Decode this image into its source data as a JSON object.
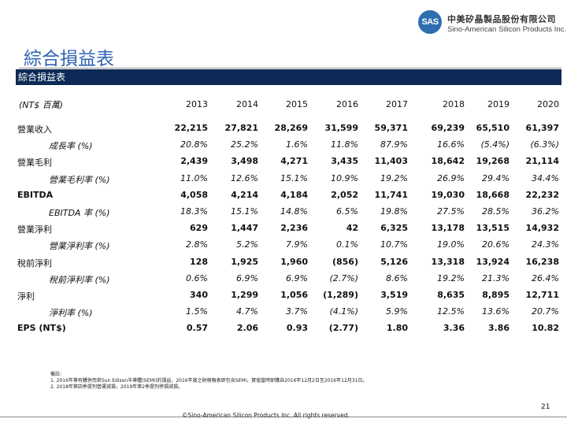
{
  "logo": {
    "mark": "SAS",
    "name_cn": "中美矽晶製品股份有限公司",
    "name_en": "Sino-American Silicon Products Inc."
  },
  "page_title": "綜合損益表",
  "table_header": "綜合損益表",
  "unit_label": "(NT$ 百萬)",
  "years": [
    "2013",
    "2014",
    "2015",
    "2016",
    "2017",
    "2018",
    "2019",
    "2020"
  ],
  "rows": [
    {
      "label": "營業收入",
      "type": "main",
      "values": [
        "22,215",
        "27,821",
        "28,269",
        "31,599",
        "59,371",
        "69,239",
        "65,510",
        "61,397"
      ]
    },
    {
      "label": "成長率 (%)",
      "type": "sub",
      "values": [
        "20.8%",
        "25.2%",
        "1.6%",
        "11.8%",
        "87.9%",
        "16.6%",
        "(5.4%)",
        "(6.3%)"
      ]
    },
    {
      "label": "營業毛利",
      "type": "main",
      "values": [
        "2,439",
        "3,498",
        "4,271",
        "3,435",
        "11,403",
        "18,642",
        "19,268",
        "21,114"
      ]
    },
    {
      "label": "營業毛利率 (%)",
      "type": "sub",
      "values": [
        "11.0%",
        "12.6%",
        "15.1%",
        "10.9%",
        "19.2%",
        "26.9%",
        "29.4%",
        "34.4%"
      ]
    },
    {
      "label": "EBITDA",
      "type": "main",
      "values": [
        "4,058",
        "4,214",
        "4,184",
        "2,052",
        "11,741",
        "19,030",
        "18,668",
        "22,232"
      ]
    },
    {
      "label": "EBITDA 率 (%)",
      "type": "sub",
      "values": [
        "18.3%",
        "15.1%",
        "14.8%",
        "6.5%",
        "19.8%",
        "27.5%",
        "28.5%",
        "36.2%"
      ]
    },
    {
      "label": "營業淨利",
      "type": "main",
      "values": [
        "629",
        "1,447",
        "2,236",
        "42",
        "6,325",
        "13,178",
        "13,515",
        "14,932"
      ]
    },
    {
      "label": "營業淨利率 (%)",
      "type": "sub",
      "values": [
        "2.8%",
        "5.2%",
        "7.9%",
        "0.1%",
        "10.7%",
        "19.0%",
        "20.6%",
        "24.3%"
      ]
    },
    {
      "label": "稅前淨利",
      "type": "main",
      "values": [
        "128",
        "1,925",
        "1,960",
        "(856)",
        "5,126",
        "13,318",
        "13,924",
        "16,238"
      ]
    },
    {
      "label": "稅前淨利率 (%)",
      "type": "sub",
      "values": [
        "0.6%",
        "6.9%",
        "6.9%",
        "(2.7%)",
        "8.6%",
        "19.2%",
        "21.3%",
        "26.4%"
      ]
    },
    {
      "label": "淨利",
      "type": "main",
      "values": [
        "340",
        "1,299",
        "1,056",
        "(1,289)",
        "3,519",
        "8,635",
        "8,895",
        "12,711"
      ]
    },
    {
      "label": "淨利率 (%)",
      "type": "sub",
      "values": [
        "1.5%",
        "4.7%",
        "3.7%",
        "(4.1%)",
        "5.9%",
        "12.5%",
        "13.6%",
        "20.7%"
      ]
    },
    {
      "label": "EPS (NT$)",
      "type": "main",
      "values": [
        "0.57",
        "2.06",
        "0.93",
        "(2.77)",
        "1.80",
        "3.36",
        "3.86",
        "10.82"
      ]
    }
  ],
  "notes": {
    "title": "備註:",
    "lines": [
      "1. 2016年專有購併而來Sun Edison半導體(SEMI)的損益，2016年度之財務報表即包含SEMI，實值當時即購自2016年12月2日至2016年12月31日。",
      "2. 2018年第四季提列營運減損，2019年第2季提列停損減損。"
    ]
  },
  "page_number": "21",
  "copyright": "©Sino-American Silicon Products Inc.  All rights reserved."
}
